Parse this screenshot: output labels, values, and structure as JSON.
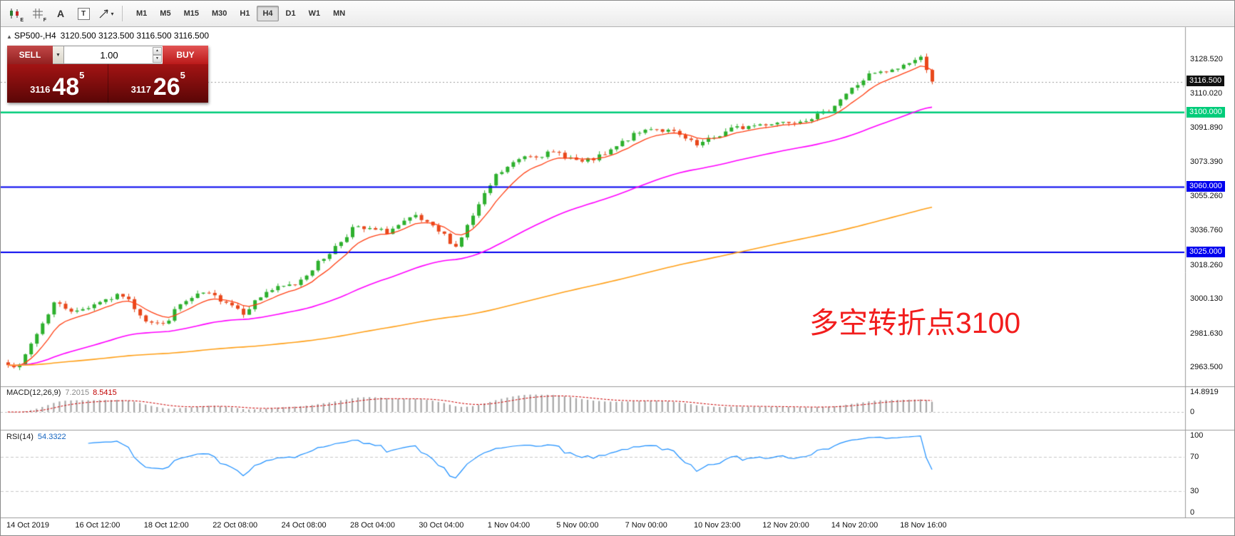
{
  "toolbar": {
    "icons": [
      {
        "name": "candlestick-tool-icon",
        "glyph": "E"
      },
      {
        "name": "grid-tool-icon",
        "glyph": "F"
      },
      {
        "name": "text-tool-icon",
        "glyph": "A"
      },
      {
        "name": "label-tool-icon",
        "glyph": "T"
      },
      {
        "name": "crosshair-tool-icon",
        "glyph": "▾"
      }
    ],
    "timeframes": [
      "M1",
      "M5",
      "M15",
      "M30",
      "H1",
      "H4",
      "D1",
      "W1",
      "MN"
    ],
    "active_timeframe": "H4"
  },
  "glyphs": {
    "title_marker": "▲",
    "dropdown": "▼",
    "spinner_up": "▲",
    "spinner_down": "▼"
  },
  "chart_header": {
    "symbol": "SP500-,H4",
    "ohlc": "3120.500 3123.500 3116.500 3116.500"
  },
  "trade_panel": {
    "sell_label": "SELL",
    "buy_label": "BUY",
    "volume": "1.00",
    "sell_price": {
      "small": "3116",
      "big": "48",
      "sup": "5"
    },
    "buy_price": {
      "small": "3117",
      "big": "26",
      "sup": "5"
    }
  },
  "annotation": {
    "text": "多空转折点3100",
    "color": "#f21d1d"
  },
  "price_axis": {
    "ticks": [
      "3128.520",
      "3110.020",
      "3091.890",
      "3073.390",
      "3055.260",
      "3036.760",
      "3018.260",
      "3000.130",
      "2981.630",
      "2963.500"
    ],
    "tags": [
      {
        "text": "3116.500",
        "price": 3116.5,
        "bg": "#101010",
        "name": "bid-price-tag"
      },
      {
        "text": "3100.000",
        "price": 3100.0,
        "bg": "#00cc7a",
        "name": "level-3100-tag"
      },
      {
        "text": "3060.000",
        "price": 3060.0,
        "bg": "#0000ee",
        "name": "level-3060-tag"
      },
      {
        "text": "3025.000",
        "price": 3025.0,
        "bg": "#0000ee",
        "name": "level-3025-tag"
      }
    ]
  },
  "macd_panel": {
    "label": "MACD(12,26,9)",
    "main_value": "7.2015",
    "signal_value": "8.5415",
    "axis_labels": [
      {
        "text": "14.8919",
        "value": 14.8919
      },
      {
        "text": "0",
        "value": 0
      }
    ]
  },
  "rsi_panel": {
    "label": "RSI(14)",
    "value": "54.3322",
    "axis_labels": [
      {
        "text": "100",
        "value": 100
      },
      {
        "text": "70",
        "value": 70
      },
      {
        "text": "30",
        "value": 30
      },
      {
        "text": "0",
        "value": 0
      }
    ],
    "levels": [
      70,
      30
    ]
  },
  "time_axis": {
    "labels": [
      "14 Oct 2019",
      "16 Oct 12:00",
      "18 Oct 12:00",
      "22 Oct 08:00",
      "24 Oct 08:00",
      "28 Oct 04:00",
      "30 Oct 04:00",
      "1 Nov 04:00",
      "5 Nov 00:00",
      "7 Nov 00:00",
      "10 Nov 23:00",
      "12 Nov 20:00",
      "14 Nov 20:00",
      "18 Nov 16:00"
    ]
  },
  "chart_data": {
    "type": "candlestick",
    "title": "SP500- H4",
    "symbol": "SP500",
    "timeframe": "H4",
    "bid": 3116.48,
    "ask": 3117.26,
    "last_close": 3116.5,
    "visible_price_range": [
      2954.0,
      3140.0
    ],
    "candle_count": 162,
    "noise_seed": 7,
    "noise_amp": 1.5,
    "up_color": "#2db02d",
    "down_color": "#e8481c",
    "waypoints": [
      [
        0,
        2966
      ],
      [
        2,
        2963.5
      ],
      [
        4,
        2976
      ],
      [
        8,
        2998
      ],
      [
        12,
        2993
      ],
      [
        16,
        2999
      ],
      [
        20,
        3002
      ],
      [
        24,
        2989
      ],
      [
        27,
        2986
      ],
      [
        30,
        2997
      ],
      [
        34,
        3003
      ],
      [
        38,
        2999
      ],
      [
        41,
        2993
      ],
      [
        45,
        3004
      ],
      [
        50,
        3008
      ],
      [
        55,
        3022
      ],
      [
        58,
        3031
      ],
      [
        60,
        3038
      ],
      [
        66,
        3036
      ],
      [
        71,
        3044
      ],
      [
        76,
        3034
      ],
      [
        78,
        3028
      ],
      [
        82,
        3050
      ],
      [
        85,
        3066
      ],
      [
        90,
        3077
      ],
      [
        96,
        3078
      ],
      [
        100,
        3073
      ],
      [
        104,
        3077
      ],
      [
        108,
        3086
      ],
      [
        112,
        3092
      ],
      [
        116,
        3089
      ],
      [
        120,
        3082
      ],
      [
        126,
        3091
      ],
      [
        132,
        3094
      ],
      [
        138,
        3096
      ],
      [
        142,
        3099
      ],
      [
        146,
        3110
      ],
      [
        150,
        3120
      ],
      [
        154,
        3122
      ],
      [
        157,
        3127
      ],
      [
        159,
        3129
      ],
      [
        160,
        3124
      ],
      [
        161,
        3116.5
      ]
    ],
    "moving_averages": [
      {
        "name": "fast-ma",
        "period": 8,
        "color": "#ff4014"
      },
      {
        "name": "mid-ma",
        "period": 50,
        "color": "#ff00ff"
      },
      {
        "name": "slow-ma",
        "period": 200,
        "color": "#ffa018"
      }
    ],
    "levels": [
      {
        "price": 3100.0,
        "color": "#00cc7a",
        "width": 2.5
      },
      {
        "price": 3060.0,
        "color": "#0000ee",
        "width": 2
      },
      {
        "price": 3025.0,
        "color": "#0000ee",
        "width": 2
      }
    ],
    "macd": {
      "fast": 12,
      "slow": 26,
      "signal": 9,
      "main": 7.2015,
      "signal_value": 8.5415,
      "axis_max": 14.8919
    },
    "rsi": {
      "period": 14,
      "value": 54.3322,
      "range": [
        0,
        100
      ],
      "levels": [
        30,
        70
      ]
    }
  }
}
